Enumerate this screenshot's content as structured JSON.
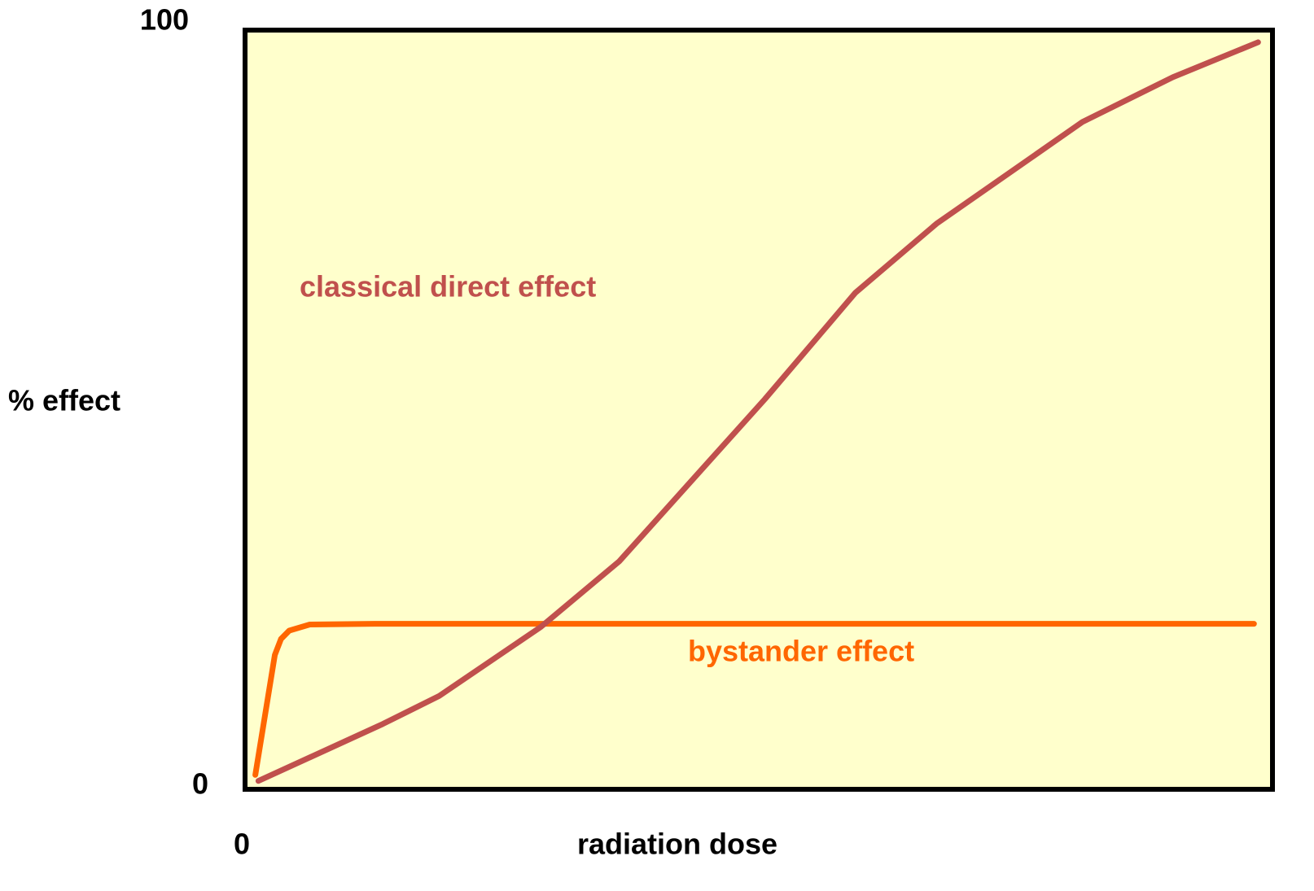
{
  "chart_data": {
    "type": "line",
    "y_label": "% effect",
    "x_label": "radiation dose",
    "xlim": [
      0,
      100
    ],
    "xticks": [
      0
    ],
    "ylim": [
      0,
      100
    ],
    "yticks": [
      0,
      100
    ],
    "grid": false,
    "background": "#ffffcc",
    "series": [
      {
        "name": "classical direct effect",
        "color": "#c0504d",
        "x": [
          1.3,
          13.4,
          18.9,
          28.8,
          36.4,
          43.5,
          50.6,
          59.4,
          67.3,
          81.5,
          90.3,
          98.6
        ],
        "values": [
          1.1,
          8.6,
          12.3,
          21.4,
          30.0,
          40.7,
          51.4,
          65.4,
          74.5,
          87.9,
          93.8,
          98.4
        ]
      },
      {
        "name": "bystander effect",
        "color": "#ff6600",
        "x": [
          1.0,
          2.9,
          3.5,
          4.3,
          6.3,
          12.6,
          98.2
        ],
        "values": [
          1.9,
          17.7,
          19.8,
          20.9,
          21.7,
          21.8,
          21.8
        ]
      }
    ]
  }
}
